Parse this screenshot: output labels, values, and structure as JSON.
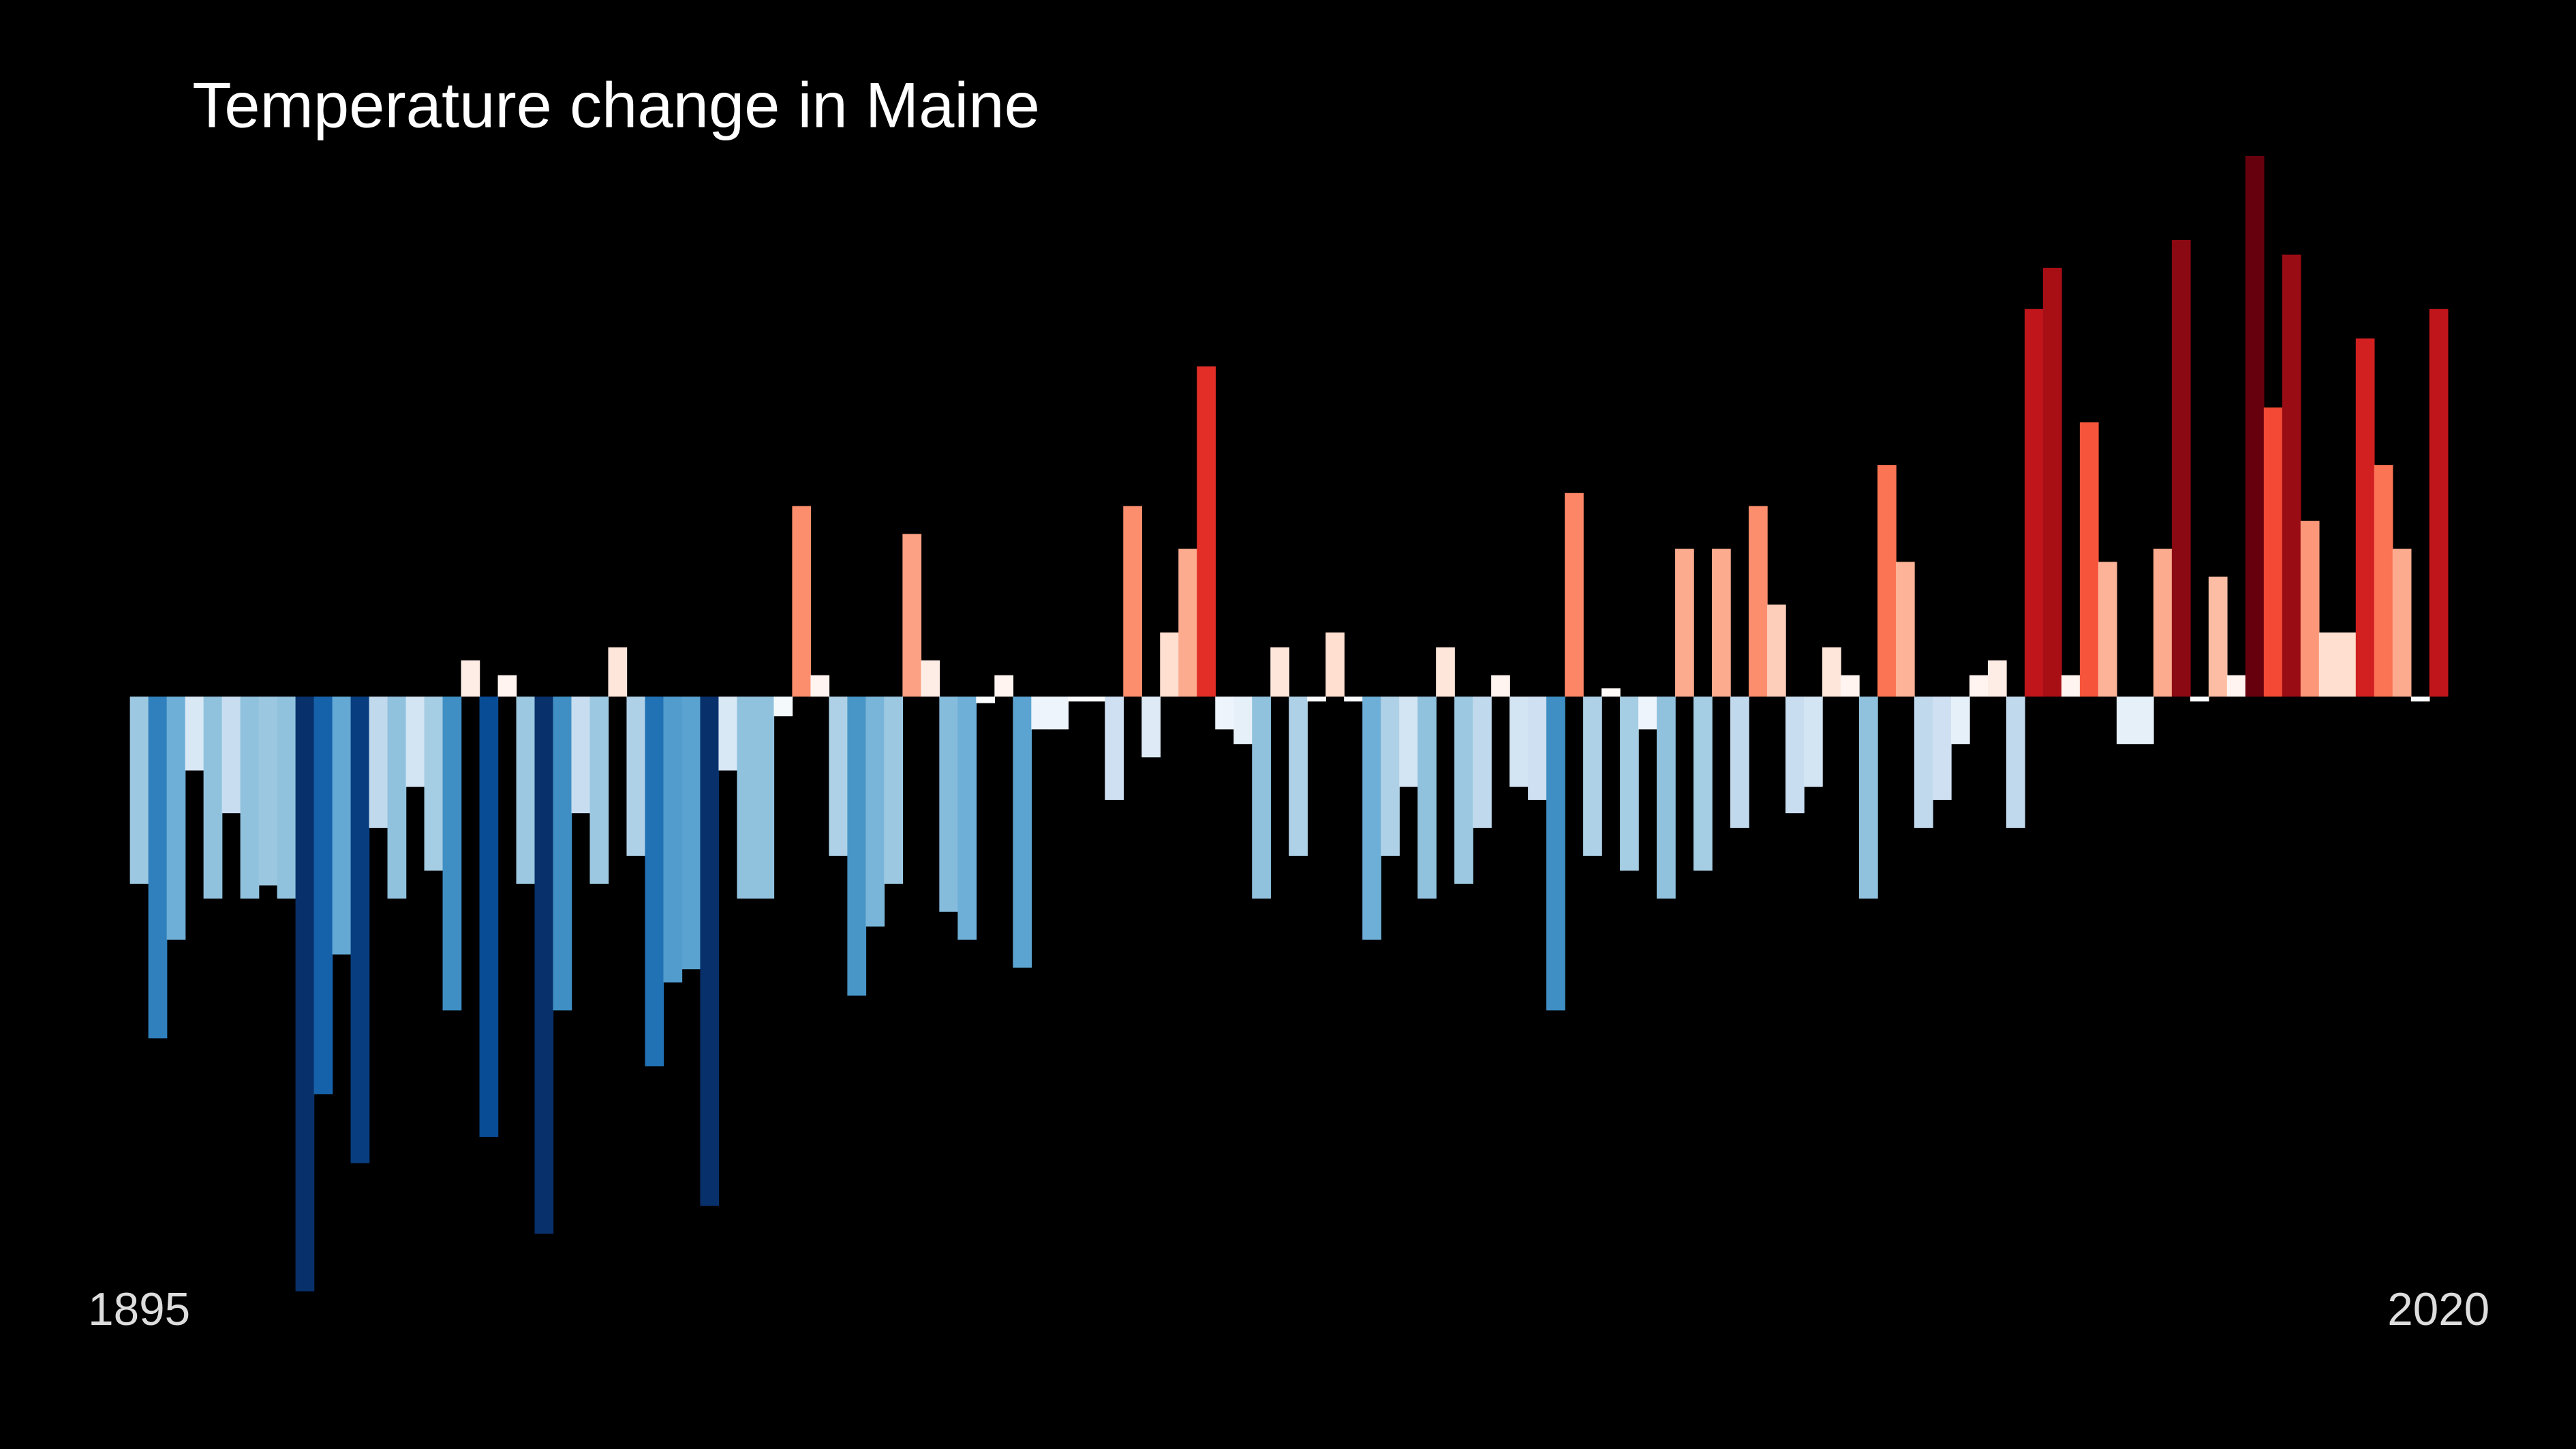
{
  "chart_data": {
    "type": "bar",
    "title": "Temperature change in Maine",
    "categories": [
      "1895",
      null,
      null,
      null,
      null,
      null,
      null,
      null,
      null,
      null,
      null,
      null,
      null,
      null,
      null,
      null,
      null,
      null,
      null,
      null,
      null,
      null,
      null,
      null,
      null,
      null,
      null,
      null,
      null,
      null,
      null,
      null,
      null,
      null,
      null,
      null,
      null,
      null,
      null,
      null,
      null,
      null,
      null,
      null,
      null,
      null,
      null,
      null,
      null,
      null,
      null,
      null,
      null,
      null,
      null,
      null,
      null,
      null,
      null,
      null,
      null,
      null,
      null,
      null,
      null,
      null,
      null,
      null,
      null,
      null,
      null,
      null,
      null,
      null,
      null,
      null,
      null,
      null,
      null,
      null,
      null,
      null,
      null,
      null,
      null,
      null,
      null,
      null,
      null,
      null,
      null,
      null,
      null,
      null,
      null,
      null,
      null,
      null,
      null,
      null,
      null,
      null,
      null,
      null,
      null,
      null,
      null,
      null,
      null,
      null,
      null,
      null,
      null,
      null,
      null,
      null,
      null,
      null,
      null,
      null,
      null,
      null,
      null,
      null,
      null,
      "2020"
    ],
    "values": [
      -1.14,
      -2.08,
      -1.48,
      -0.45,
      -1.23,
      -0.71,
      -1.23,
      -1.15,
      -1.23,
      -3.62,
      -2.42,
      -1.57,
      -2.84,
      -0.8,
      -1.23,
      -0.55,
      -1.06,
      -1.91,
      0.22,
      -2.68,
      0.13,
      -1.14,
      -3.27,
      -1.91,
      -0.71,
      -1.14,
      0.3,
      -0.97,
      -2.25,
      -1.74,
      -1.66,
      -3.1,
      -0.45,
      -1.23,
      -1.23,
      -0.12,
      1.16,
      0.13,
      -0.97,
      -1.82,
      -1.4,
      -1.14,
      0.99,
      0.22,
      -1.31,
      -1.48,
      -0.04,
      0.13,
      -1.65,
      -0.2,
      -0.2,
      -0.03,
      -0.03,
      -0.63,
      1.16,
      -0.37,
      0.39,
      0.9,
      2.01,
      -0.2,
      -0.29,
      -1.23,
      0.3,
      -0.97,
      -0.03,
      0.39,
      -0.03,
      -1.48,
      -0.97,
      -0.55,
      -1.23,
      0.3,
      -1.14,
      -0.8,
      0.13,
      -0.55,
      -0.63,
      -1.91,
      1.24,
      -0.97,
      0.05,
      -1.06,
      -0.2,
      -1.23,
      0.9,
      -1.06,
      0.9,
      -0.8,
      1.16,
      0.56,
      -0.71,
      -0.55,
      0.3,
      0.13,
      -1.23,
      1.41,
      0.82,
      -0.8,
      -0.63,
      -0.29,
      0.13,
      0.22,
      -0.8,
      2.36,
      2.61,
      0.13,
      1.67,
      0.82,
      -0.29,
      -0.29,
      0.9,
      2.78,
      -0.03,
      0.73,
      0.13,
      3.29,
      1.76,
      2.69,
      1.07,
      0.39,
      0.39,
      2.18,
      1.41,
      0.9,
      -0.03,
      2.36
    ],
    "colormap": [
      "#08306b",
      "#08519c",
      "#2171b5",
      "#4292c6",
      "#6baed6",
      "#9ecae1",
      "#c6dbef",
      "#deebf7",
      "#ffffff",
      "#fee0d2",
      "#fcbba1",
      "#fc9272",
      "#fb6a4a",
      "#ef3b2c",
      "#cb181d",
      "#a50f15",
      "#67000d"
    ],
    "clim": [
      -3,
      3
    ]
  }
}
